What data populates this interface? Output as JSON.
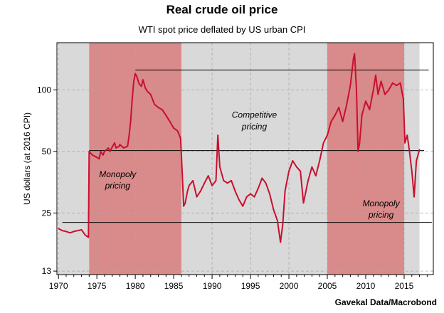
{
  "chart_data": {
    "type": "line",
    "title": "Real crude oil price",
    "subtitle": "WTI spot price deflated by US urban CPI",
    "ylabel": "US dollars (at 2016 CPI)",
    "xlabel": "",
    "source": "Gavekal Data/Macrobond",
    "y_scale": "log",
    "xlim": [
      1969.8,
      2018.8
    ],
    "ylim": [
      12.5,
      170
    ],
    "x_ticks": [
      1970,
      1975,
      1980,
      1985,
      1990,
      1995,
      2000,
      2005,
      2010,
      2015
    ],
    "y_ticks": [
      13,
      25,
      50,
      100
    ],
    "grid": true,
    "colors": {
      "series": "#c8102e",
      "background": "#d9d9d9",
      "shaded_regime": "#d98a8a",
      "reference_lines": "#000000"
    },
    "regimes": [
      {
        "start": 1974.0,
        "end": 1986.0,
        "label_lines": [
          "Monopoly",
          "pricing"
        ],
        "label_x": 1977.7,
        "label_y": 37.5,
        "shaded": true
      },
      {
        "start": 1986.0,
        "end": 2005.0,
        "label_lines": [
          "Competitive",
          "pricing"
        ],
        "label_x": 1995.5,
        "label_y": 73,
        "shaded": false
      },
      {
        "start": 2005.0,
        "end": 2015.0,
        "label_lines": [
          "Monopoly",
          "pricing"
        ],
        "label_x": 2012.0,
        "label_y": 27,
        "shaded": true
      }
    ],
    "reference_lines": [
      {
        "x0": 1980.0,
        "x1": 2018.2,
        "y": 125
      },
      {
        "x0": 1974.0,
        "x1": 2017.6,
        "y": 50.5
      },
      {
        "x0": 1970.5,
        "x1": 2018.6,
        "y": 22.5
      }
    ],
    "series": [
      {
        "x": [
          1970.0,
          1970.5,
          1971.0,
          1971.5,
          1972.0,
          1972.5,
          1973.0,
          1973.5,
          1973.9,
          1974.0,
          1974.4,
          1974.9,
          1975.3,
          1975.5,
          1975.8,
          1976.0,
          1976.5,
          1976.7,
          1977.0,
          1977.3,
          1977.5,
          1977.9,
          1978.0,
          1978.5,
          1979.0,
          1979.2,
          1979.4,
          1979.6,
          1979.8,
          1980.0,
          1980.2,
          1980.5,
          1980.8,
          1981.0,
          1981.3,
          1981.6,
          1982.0,
          1982.5,
          1983.0,
          1983.5,
          1984.0,
          1984.5,
          1985.0,
          1985.5,
          1985.9,
          1986.1,
          1986.3,
          1986.5,
          1986.8,
          1987.0,
          1987.5,
          1988.0,
          1988.5,
          1989.0,
          1989.5,
          1990.0,
          1990.5,
          1990.75,
          1991.0,
          1991.5,
          1992.0,
          1992.5,
          1993.0,
          1993.5,
          1994.0,
          1994.5,
          1995.0,
          1995.5,
          1996.0,
          1996.5,
          1997.0,
          1997.5,
          1998.0,
          1998.5,
          1998.9,
          1999.2,
          1999.5,
          2000.0,
          2000.5,
          2001.0,
          2001.5,
          2001.9,
          2002.5,
          2003.0,
          2003.5,
          2004.0,
          2004.5,
          2005.0,
          2005.5,
          2006.0,
          2006.5,
          2007.0,
          2007.5,
          2008.0,
          2008.4,
          2008.55,
          2008.8,
          2009.0,
          2009.2,
          2009.5,
          2010.0,
          2010.5,
          2011.0,
          2011.3,
          2011.6,
          2012.0,
          2012.5,
          2013.0,
          2013.5,
          2014.0,
          2014.5,
          2014.9,
          2015.1,
          2015.4,
          2015.7,
          2016.0,
          2016.3,
          2016.6,
          2017.0
        ],
        "values": [
          21.0,
          20.5,
          20.3,
          20.0,
          20.3,
          20.5,
          20.7,
          19.5,
          19.0,
          50.0,
          48.0,
          47.0,
          46.0,
          50.0,
          48.0,
          50.0,
          52.0,
          50.0,
          52.5,
          55.0,
          52.0,
          53.0,
          54.0,
          52.0,
          53.0,
          60.0,
          70.0,
          90.0,
          110.0,
          120.0,
          116.0,
          107.0,
          104.0,
          112.0,
          102.0,
          98.0,
          95.0,
          85.0,
          82.0,
          80.0,
          75.0,
          70.0,
          65.0,
          63.0,
          58.0,
          40.0,
          27.0,
          28.0,
          32.0,
          34.0,
          36.0,
          30.0,
          32.0,
          35.0,
          38.0,
          34.0,
          36.0,
          60.0,
          42.0,
          36.0,
          35.0,
          36.0,
          32.0,
          29.0,
          27.0,
          30.0,
          31.0,
          30.0,
          33.0,
          37.0,
          35.0,
          31.0,
          26.0,
          23.0,
          18.0,
          22.0,
          32.0,
          40.0,
          45.0,
          42.0,
          40.0,
          28.0,
          36.0,
          42.0,
          38.0,
          45.0,
          55.0,
          60.0,
          70.0,
          75.0,
          82.0,
          70.0,
          84.0,
          105.0,
          142.0,
          150.0,
          100.0,
          50.0,
          55.0,
          75.0,
          88.0,
          80.0,
          100.0,
          118.0,
          95.0,
          110.0,
          95.0,
          100.0,
          108.0,
          105.0,
          108.0,
          90.0,
          55.0,
          60.0,
          50.0,
          40.0,
          30.0,
          45.0,
          51.0
        ]
      }
    ]
  }
}
